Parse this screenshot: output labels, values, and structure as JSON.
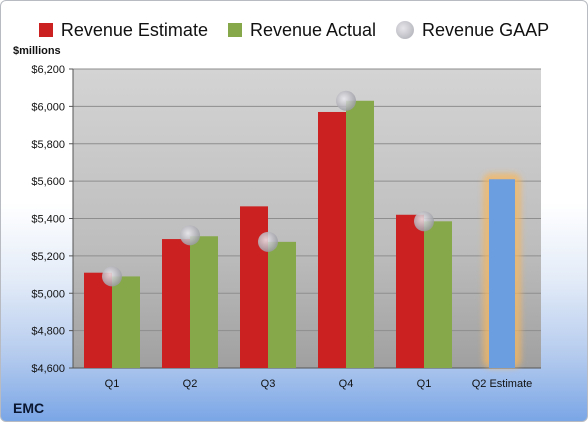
{
  "chart_data": {
    "type": "bar",
    "categories": [
      "Q1",
      "Q2",
      "Q3",
      "Q4",
      "Q1",
      "Q2 Estimate"
    ],
    "series": [
      {
        "name": "Revenue Estimate",
        "color": "#cc2121",
        "values": [
          5110,
          5290,
          5465,
          5970,
          5420,
          null
        ]
      },
      {
        "name": "Revenue Actual",
        "color": "#86a84a",
        "values": [
          5090,
          5305,
          5275,
          6030,
          5385,
          null
        ]
      },
      {
        "name": "Revenue GAAP",
        "color": "#c2c2c8",
        "marker": "circle",
        "values": [
          5090,
          5310,
          5275,
          6030,
          5385,
          null
        ]
      }
    ],
    "highlight": {
      "category": "Q2 Estimate",
      "value": 5610,
      "color": "#6a9ee0",
      "glow": "#f5b760"
    },
    "ylabel": "$millions",
    "ylim": [
      4600,
      6200
    ],
    "yticks": [
      4600,
      4800,
      5000,
      5200,
      5400,
      5600,
      5800,
      6000,
      6200
    ],
    "ytick_labels": [
      "$4,600",
      "$4,800",
      "$5,000",
      "$5,200",
      "$5,400",
      "$5,600",
      "$5,800",
      "$6,000",
      "$6,200"
    ],
    "grid": true,
    "legend": "top",
    "company": "EMC"
  }
}
